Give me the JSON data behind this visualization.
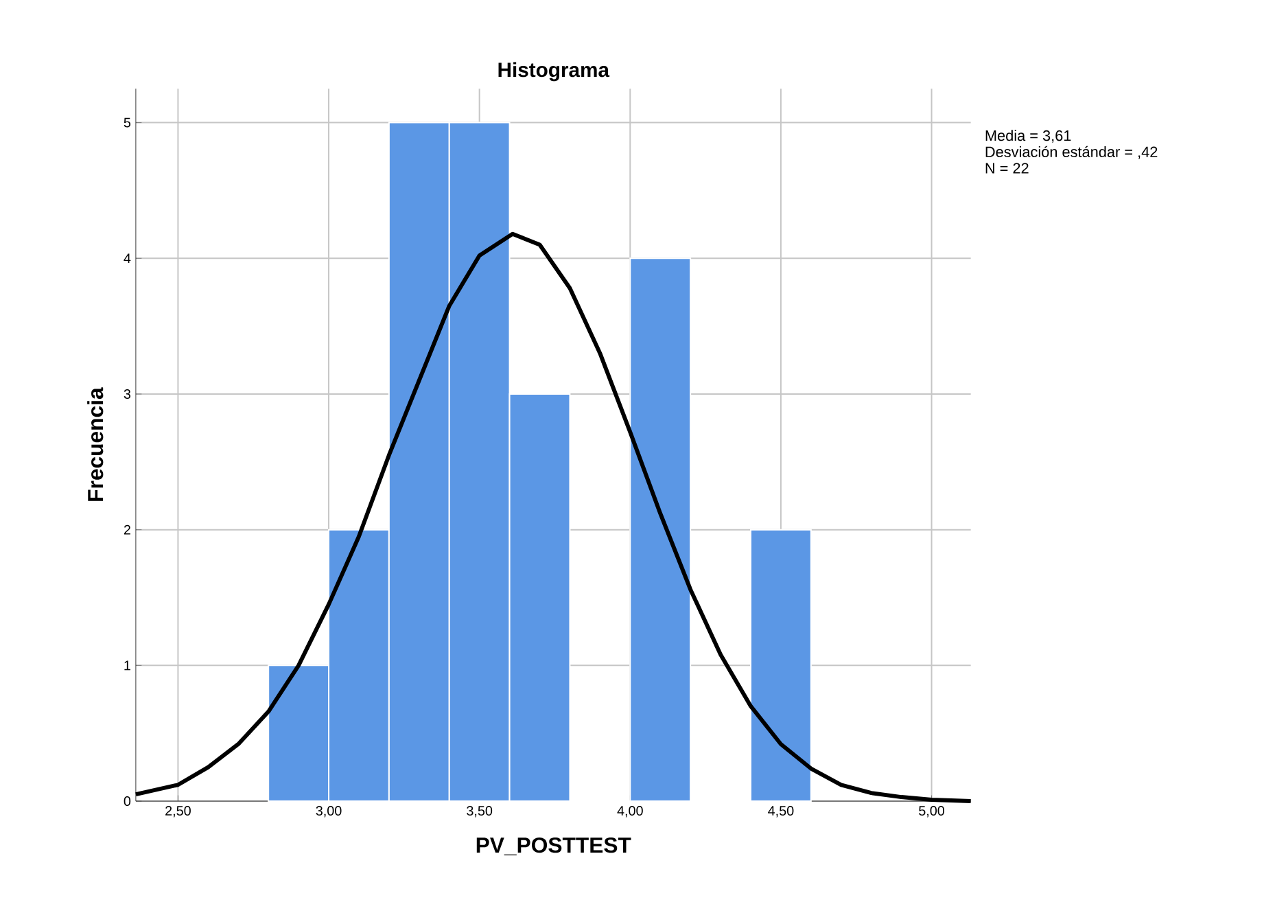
{
  "chart_data": {
    "type": "histogram",
    "title": "Histograma",
    "xlabel": "PV_POSTTEST",
    "ylabel": "Frecuencia",
    "bins": [
      2.8,
      3.0,
      3.2,
      3.4,
      3.6,
      3.8,
      4.0,
      4.2,
      4.4,
      4.6
    ],
    "values": [
      1,
      2,
      5,
      5,
      3,
      0,
      4,
      0,
      2
    ],
    "color": "#5b97e5",
    "series": [
      {
        "type": "line",
        "color": "#000000",
        "x": [
          2.36,
          2.5,
          2.6,
          2.7,
          2.8,
          2.9,
          3.0,
          3.1,
          3.2,
          3.3,
          3.4,
          3.5,
          3.61,
          3.7,
          3.8,
          3.9,
          4.0,
          4.1,
          4.2,
          4.3,
          4.4,
          4.5,
          4.6,
          4.7,
          4.8,
          4.9,
          5.0,
          5.13
        ],
        "values": [
          0.05,
          0.12,
          0.25,
          0.42,
          0.66,
          1.0,
          1.45,
          1.95,
          2.55,
          3.1,
          3.65,
          4.02,
          4.18,
          4.1,
          3.78,
          3.3,
          2.72,
          2.12,
          1.56,
          1.08,
          0.7,
          0.42,
          0.24,
          0.12,
          0.06,
          0.03,
          0.01,
          0.0
        ]
      }
    ],
    "xlim": [
      2.36,
      5.13
    ],
    "ylim": [
      0,
      5.25
    ],
    "xticks": [
      {
        "value": 2.5,
        "label": "2,50"
      },
      {
        "value": 3.0,
        "label": "3,00"
      },
      {
        "value": 3.5,
        "label": "3,50"
      },
      {
        "value": 4.0,
        "label": "4,00"
      },
      {
        "value": 4.5,
        "label": "4,50"
      },
      {
        "value": 5.0,
        "label": "5,00"
      }
    ],
    "yticks": [
      0,
      1,
      2,
      3,
      4,
      5
    ],
    "grid": true,
    "annotations": [
      "Media = 3,61",
      "Desviación estándar = ,42",
      "N = 22"
    ]
  }
}
